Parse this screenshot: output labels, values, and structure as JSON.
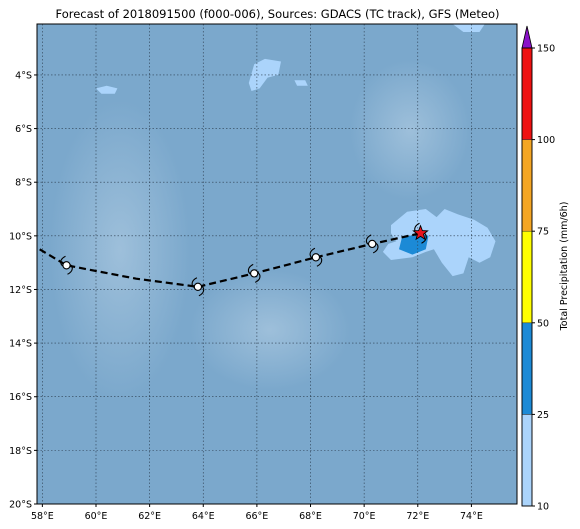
{
  "title": "Forecast of 2018091500 (f000-006), Sources: GDACS (TC track), GFS (Meteo)",
  "map": {
    "lon_range": [
      57.8,
      75.7
    ],
    "lat_range": [
      -20.0,
      -2.1
    ],
    "lon_ticks": [
      58,
      60,
      62,
      64,
      66,
      68,
      70,
      72,
      74
    ],
    "lon_tick_labels": [
      "58°E",
      "60°E",
      "62°E",
      "64°E",
      "66°E",
      "68°E",
      "70°E",
      "72°E",
      "74°E"
    ],
    "lat_ticks": [
      -4,
      -6,
      -8,
      -10,
      -12,
      -14,
      -16,
      -18,
      -20
    ],
    "lat_tick_labels": [
      "4°S",
      "6°S",
      "8°S",
      "10°S",
      "12°S",
      "14°S",
      "16°S",
      "18°S",
      "20°S"
    ],
    "gridlines": true,
    "ocean_color": "#7ba8cc"
  },
  "track": {
    "points": [
      {
        "lon": 57.9,
        "lat": -10.5
      },
      {
        "lon": 58.9,
        "lat": -11.1
      },
      {
        "lon": 61.5,
        "lat": -11.6
      },
      {
        "lon": 63.8,
        "lat": -11.9
      },
      {
        "lon": 65.9,
        "lat": -11.4
      },
      {
        "lon": 68.2,
        "lat": -10.8
      },
      {
        "lon": 70.3,
        "lat": -10.3
      },
      {
        "lon": 72.1,
        "lat": -9.9
      }
    ],
    "symbols": [
      {
        "lon": 58.9,
        "lat": -11.1
      },
      {
        "lon": 63.8,
        "lat": -11.9
      },
      {
        "lon": 65.9,
        "lat": -11.4
      },
      {
        "lon": 68.2,
        "lat": -10.8
      },
      {
        "lon": 70.3,
        "lat": -10.3
      }
    ],
    "current_position": {
      "lon": 72.1,
      "lat": -9.9
    },
    "current_color": "#e8141e"
  },
  "precipitation": {
    "light_color": "#abd4fb",
    "moderate_color": "#1c8ad6",
    "light_areas": [
      {
        "name": "main-band",
        "points": [
          [
            71.0,
            -9.6
          ],
          [
            71.6,
            -9.1
          ],
          [
            72.3,
            -9.0
          ],
          [
            72.7,
            -9.3
          ],
          [
            73.0,
            -9.0
          ],
          [
            73.5,
            -9.2
          ],
          [
            74.1,
            -9.4
          ],
          [
            74.6,
            -9.7
          ],
          [
            74.9,
            -10.2
          ],
          [
            74.7,
            -10.8
          ],
          [
            74.3,
            -11.0
          ],
          [
            73.9,
            -10.8
          ],
          [
            73.7,
            -11.4
          ],
          [
            73.3,
            -11.5
          ],
          [
            72.9,
            -11.0
          ],
          [
            72.6,
            -10.5
          ],
          [
            72.3,
            -10.6
          ],
          [
            71.8,
            -10.8
          ],
          [
            71.0,
            -10.9
          ],
          [
            70.7,
            -10.6
          ],
          [
            70.9,
            -10.3
          ],
          [
            71.2,
            -10.2
          ],
          [
            71.0,
            -9.9
          ]
        ]
      },
      {
        "name": "patch-north",
        "points": [
          [
            65.7,
            -4.3
          ],
          [
            65.9,
            -3.6
          ],
          [
            66.3,
            -3.4
          ],
          [
            66.9,
            -3.5
          ],
          [
            66.8,
            -4.0
          ],
          [
            66.4,
            -4.1
          ],
          [
            66.1,
            -4.5
          ],
          [
            65.8,
            -4.6
          ]
        ]
      },
      {
        "name": "patch-west",
        "points": [
          [
            60.0,
            -4.5
          ],
          [
            60.4,
            -4.4
          ],
          [
            60.8,
            -4.5
          ],
          [
            60.7,
            -4.7
          ],
          [
            60.2,
            -4.7
          ]
        ]
      },
      {
        "name": "patch-mid",
        "points": [
          [
            67.4,
            -4.2
          ],
          [
            67.8,
            -4.2
          ],
          [
            67.9,
            -4.4
          ],
          [
            67.5,
            -4.4
          ]
        ]
      },
      {
        "name": "patch-top",
        "points": [
          [
            73.3,
            -2.1
          ],
          [
            74.5,
            -2.1
          ],
          [
            74.3,
            -2.4
          ],
          [
            73.7,
            -2.4
          ]
        ]
      }
    ],
    "moderate_areas": [
      {
        "name": "core",
        "points": [
          [
            71.4,
            -10.1
          ],
          [
            72.0,
            -9.9
          ],
          [
            72.4,
            -10.0
          ],
          [
            72.3,
            -10.5
          ],
          [
            71.8,
            -10.7
          ],
          [
            71.3,
            -10.5
          ]
        ]
      }
    ]
  },
  "colorbar": {
    "title": "Total Precipitation (mm/6h)",
    "ticks": [
      "10",
      "25",
      "50",
      "75",
      "100",
      "150"
    ],
    "bands": [
      {
        "from": "10",
        "to": "25",
        "color": "#abd4fb"
      },
      {
        "from": "25",
        "to": "50",
        "color": "#1c8ad6"
      },
      {
        "from": "50",
        "to": "75",
        "color": "#ffff00"
      },
      {
        "from": "75",
        "to": "100",
        "color": "#f5a623"
      },
      {
        "from": "100",
        "to": "150",
        "color": "#ee1111"
      }
    ],
    "extend_color": "#8a12c8"
  }
}
